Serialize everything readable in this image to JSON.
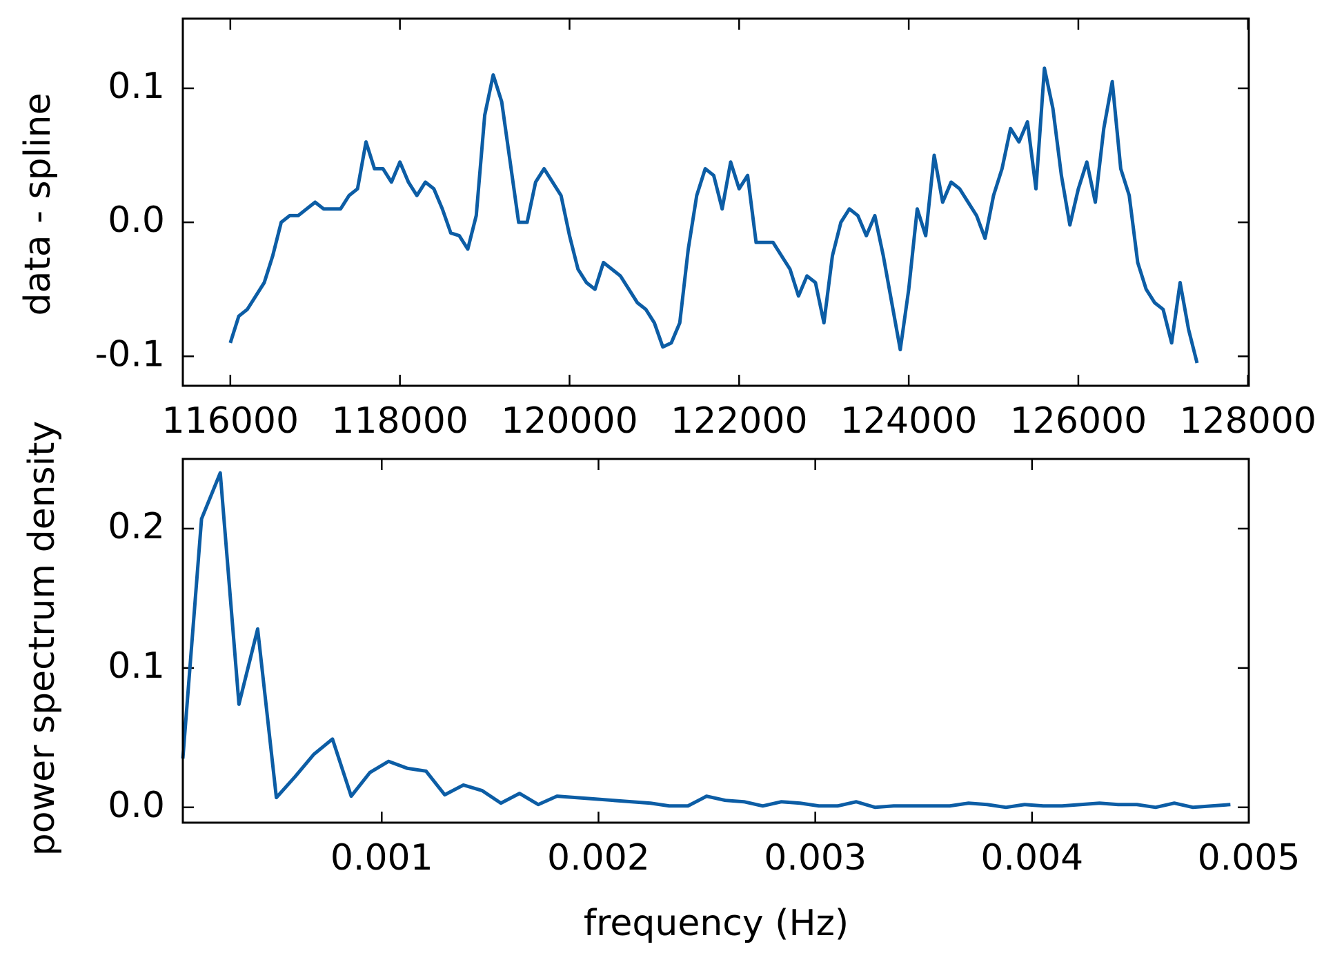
{
  "chart_data": [
    {
      "type": "line",
      "ylabel": "data - spline",
      "x": [
        116000,
        116100,
        116200,
        116300,
        116400,
        116500,
        116600,
        116700,
        116800,
        116900,
        117000,
        117100,
        117200,
        117300,
        117400,
        117500,
        117600,
        117700,
        117800,
        117900,
        118000,
        118100,
        118200,
        118300,
        118400,
        118500,
        118600,
        118700,
        118800,
        118900,
        119000,
        119100,
        119200,
        119300,
        119400,
        119500,
        119600,
        119700,
        119800,
        119900,
        120000,
        120100,
        120200,
        120300,
        120400,
        120500,
        120600,
        120700,
        120800,
        120900,
        121000,
        121100,
        121200,
        121300,
        121400,
        121500,
        121600,
        121700,
        121800,
        121900,
        122000,
        122100,
        122200,
        122300,
        122400,
        122500,
        122600,
        122700,
        122800,
        122900,
        123000,
        123100,
        123200,
        123300,
        123400,
        123500,
        123600,
        123700,
        123800,
        123900,
        124000,
        124100,
        124200,
        124300,
        124400,
        124500,
        124600,
        124700,
        124800,
        124900,
        125000,
        125100,
        125200,
        125300,
        125400,
        125500,
        125600,
        125700,
        125800,
        125900,
        126000,
        126100,
        126200,
        126300,
        126400,
        126500,
        126600,
        126700,
        126800,
        126900,
        127000,
        127100,
        127200,
        127300,
        127400
      ],
      "series": [
        {
          "color": "#0c5da5",
          "values": [
            -0.09,
            -0.07,
            -0.065,
            -0.055,
            -0.045,
            -0.025,
            0.0,
            0.005,
            0.005,
            0.01,
            0.015,
            0.01,
            0.01,
            0.01,
            0.02,
            0.025,
            0.06,
            0.04,
            0.04,
            0.03,
            0.045,
            0.03,
            0.02,
            0.03,
            0.025,
            0.01,
            -0.008,
            -0.01,
            -0.02,
            0.005,
            0.08,
            0.11,
            0.09,
            0.045,
            0.0,
            0.0,
            0.03,
            0.04,
            0.03,
            0.02,
            -0.01,
            -0.035,
            -0.045,
            -0.05,
            -0.03,
            -0.035,
            -0.04,
            -0.05,
            -0.06,
            -0.065,
            -0.075,
            -0.093,
            -0.09,
            -0.075,
            -0.02,
            0.02,
            0.04,
            0.035,
            0.01,
            0.045,
            0.025,
            0.035,
            -0.015,
            -0.015,
            -0.015,
            -0.025,
            -0.035,
            -0.055,
            -0.04,
            -0.045,
            -0.075,
            -0.025,
            0.0,
            0.01,
            0.005,
            -0.01,
            0.005,
            -0.025,
            -0.06,
            -0.095,
            -0.05,
            0.01,
            -0.01,
            0.05,
            0.015,
            0.03,
            0.025,
            0.015,
            0.005,
            -0.012,
            0.02,
            0.04,
            0.07,
            0.06,
            0.075,
            0.025,
            0.115,
            0.085,
            0.035,
            -0.002,
            0.025,
            0.045,
            0.015,
            0.07,
            0.105,
            0.04,
            0.02,
            -0.03,
            -0.05,
            -0.06,
            -0.065,
            -0.09,
            -0.045,
            -0.08,
            -0.105
          ]
        }
      ],
      "xlim": [
        115440,
        128010
      ],
      "xticks": [
        116000,
        118000,
        120000,
        122000,
        124000,
        126000,
        128000
      ],
      "ylim": [
        -0.122,
        0.152
      ],
      "yticks": [
        -0.1,
        {
          "value": 0,
          "label": "0.0"
        },
        0.1
      ]
    },
    {
      "type": "line",
      "xlabel": "frequency (Hz)",
      "ylabel": "power spectrum density",
      "x": [
        8.24e-05,
        0.0001687,
        0.000255,
        0.0003413,
        0.0004276,
        0.0005139,
        0.0006002,
        0.0006865,
        0.0007728,
        0.0008591,
        0.0009454,
        0.0010317,
        0.001118,
        0.0012043,
        0.0012906,
        0.0013769,
        0.0014632,
        0.0015495,
        0.0016358,
        0.0017221,
        0.0018084,
        0.0018947,
        0.001981,
        0.0020673,
        0.0021536,
        0.0022399,
        0.0023262,
        0.0024125,
        0.0024988,
        0.0025851,
        0.0026714,
        0.0027577,
        0.002844,
        0.0029303,
        0.0030166,
        0.0031029,
        0.0031892,
        0.0032755,
        0.0033618,
        0.0034481,
        0.0035344,
        0.0036207,
        0.003707,
        0.0037933,
        0.0038796,
        0.0039659,
        0.0040522,
        0.0041385,
        0.0042248,
        0.0043111,
        0.0043974,
        0.0044837,
        0.00457,
        0.0046563,
        0.0047426,
        0.0048289,
        0.0049152
      ],
      "series": [
        {
          "color": "#0c5da5",
          "values": [
            0.035,
            0.207,
            0.24,
            0.074,
            0.128,
            0.007,
            0.022,
            0.038,
            0.049,
            0.008,
            0.025,
            0.033,
            0.028,
            0.026,
            0.009,
            0.016,
            0.012,
            0.003,
            0.01,
            0.002,
            0.008,
            0.007,
            0.006,
            0.005,
            0.004,
            0.003,
            0.001,
            0.001,
            0.008,
            0.005,
            0.004,
            0.001,
            0.004,
            0.003,
            0.001,
            0.001,
            0.004,
            0.0,
            0.001,
            0.001,
            0.001,
            0.001,
            0.003,
            0.002,
            0.0,
            0.002,
            0.001,
            0.001,
            0.002,
            0.003,
            0.002,
            0.002,
            0.0,
            0.003,
            0.0,
            0.001,
            0.002
          ]
        }
      ],
      "xlim": [
        8.24e-05,
        0.005
      ],
      "xticks": [
        0.001,
        0.002,
        0.003,
        0.004,
        0.005
      ],
      "ylim": [
        -0.011,
        0.25
      ],
      "yticks": [
        {
          "value": 0,
          "label": "0.0"
        },
        0.1,
        0.2
      ]
    }
  ]
}
